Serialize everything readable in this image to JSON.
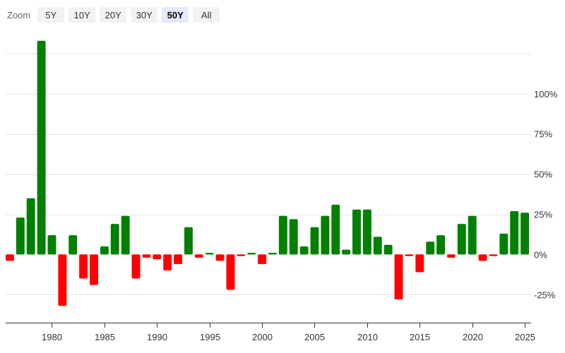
{
  "zoom": {
    "label": "Zoom",
    "buttons": [
      {
        "label": "5Y",
        "active": false
      },
      {
        "label": "10Y",
        "active": false
      },
      {
        "label": "20Y",
        "active": false
      },
      {
        "label": "30Y",
        "active": false
      },
      {
        "label": "50Y",
        "active": true
      },
      {
        "label": "All",
        "active": false
      }
    ]
  },
  "colors": {
    "positive": "#008000",
    "negative": "#ff0000",
    "grid": "#e6e6e6",
    "axis": "#333333"
  },
  "chart_data": {
    "type": "bar",
    "title": "",
    "xlabel": "",
    "ylabel": "",
    "x": [
      1976,
      1977,
      1978,
      1979,
      1980,
      1981,
      1982,
      1983,
      1984,
      1985,
      1986,
      1987,
      1988,
      1989,
      1990,
      1991,
      1992,
      1993,
      1994,
      1995,
      1996,
      1997,
      1998,
      1999,
      2000,
      2001,
      2002,
      2003,
      2004,
      2005,
      2006,
      2007,
      2008,
      2009,
      2010,
      2011,
      2012,
      2013,
      2014,
      2015,
      2016,
      2017,
      2018,
      2019,
      2020,
      2021,
      2022,
      2023,
      2024,
      2025
    ],
    "values": [
      -4,
      23,
      35,
      133,
      12,
      -32,
      12,
      -15,
      -19,
      5,
      19,
      24,
      -15,
      -2,
      -3,
      -10,
      -6,
      17,
      -2,
      1,
      -4,
      -22,
      -1,
      1,
      -6,
      1,
      24,
      22,
      5,
      17,
      24,
      31,
      3,
      28,
      28,
      11,
      6,
      -28,
      -1,
      -11,
      8,
      12,
      -2,
      19,
      24,
      -4,
      -1,
      13,
      27,
      26
    ],
    "ylim": [
      -42,
      132
    ],
    "xlim": [
      1975.6,
      2025.6
    ],
    "y_ticks": [
      -25,
      0,
      25,
      50,
      75,
      100
    ],
    "y_tick_labels": [
      "-25%",
      "0%",
      "25%",
      "50%",
      "75%",
      "100%"
    ],
    "extra_gridlines": [
      125
    ],
    "x_ticks": [
      1980,
      1985,
      1990,
      1995,
      2000,
      2005,
      2010,
      2015,
      2020,
      2025
    ],
    "x_tick_labels": [
      "1980",
      "1985",
      "1990",
      "1995",
      "2000",
      "2005",
      "2010",
      "2015",
      "2020",
      "2025"
    ],
    "grid": true,
    "legend": "none"
  }
}
